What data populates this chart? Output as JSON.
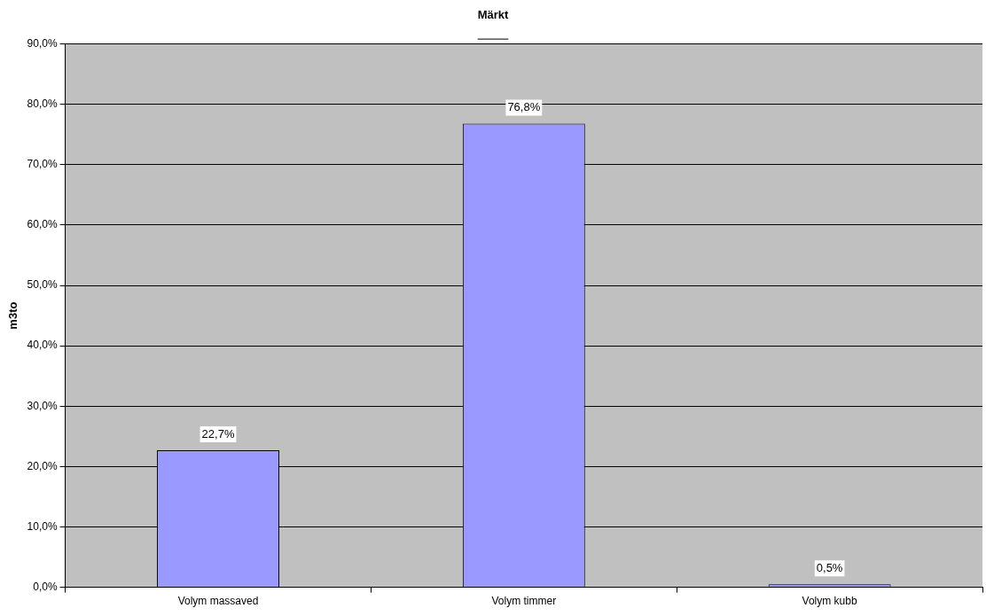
{
  "chart_data": {
    "type": "bar",
    "title": "Märkt",
    "ylabel": "m3to",
    "categories": [
      "Volym massaved",
      "Volym timmer",
      "Volym kubb"
    ],
    "values": [
      22.7,
      76.8,
      0.5
    ],
    "value_labels": [
      "22,7%",
      "76,8%",
      "0,5%"
    ],
    "color": "#9999ff",
    "ylim": [
      0,
      90
    ],
    "yticks": [
      {
        "value": 0,
        "label": "0,0%"
      },
      {
        "value": 10,
        "label": "10,0%"
      },
      {
        "value": 20,
        "label": "20,0%"
      },
      {
        "value": 30,
        "label": "30,0%"
      },
      {
        "value": 40,
        "label": "40,0%"
      },
      {
        "value": 50,
        "label": "50,0%"
      },
      {
        "value": 60,
        "label": "60,0%"
      },
      {
        "value": 70,
        "label": "70,0%"
      },
      {
        "value": 80,
        "label": "80,0%"
      },
      {
        "value": 90,
        "label": "90,0%"
      }
    ],
    "grid": "y",
    "legend": false
  }
}
